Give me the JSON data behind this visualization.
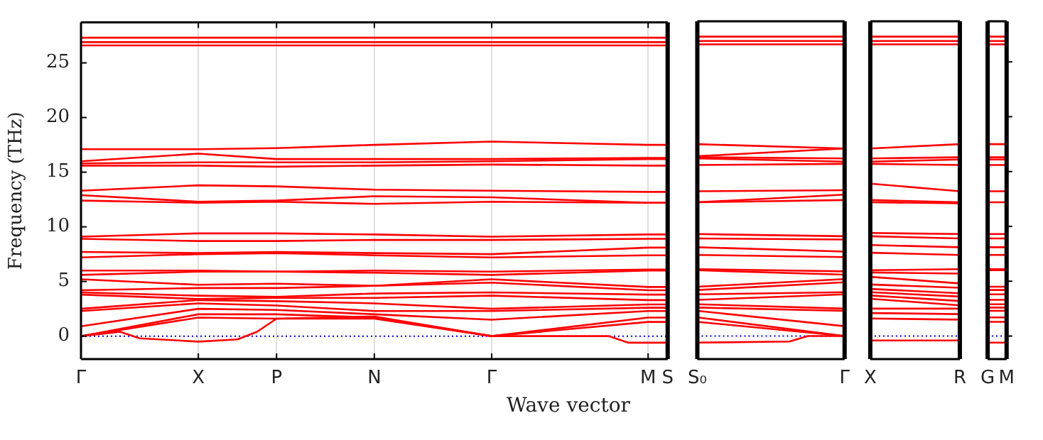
{
  "chart_data": [
    {
      "type": "line",
      "ylabel": "Frequency (THz)",
      "xlabel": "Wave vector",
      "categories": [
        "Γ",
        null,
        null,
        null,
        null,
        null,
        "X",
        null,
        null,
        null,
        "P",
        null,
        null,
        null,
        null,
        "N",
        null,
        null,
        null,
        null,
        null,
        "Γ",
        null,
        null,
        null,
        null,
        null,
        null,
        null,
        "M",
        "S"
      ],
      "ylim": [
        -2.1,
        28.7
      ],
      "yticks": [
        0,
        5,
        10,
        15,
        20,
        25
      ],
      "grid": "x",
      "ref_lines": [
        {
          "axis": "y",
          "value": 0,
          "color": "#0000ff",
          "line_style": "dotted"
        }
      ],
      "series": [
        {
          "color": "#ff0000",
          "values": [
            27.3,
            null,
            null,
            null,
            null,
            null,
            27.3,
            null,
            null,
            null,
            27.3,
            null,
            null,
            null,
            null,
            27.3,
            null,
            null,
            null,
            null,
            null,
            27.3,
            null,
            null,
            null,
            null,
            null,
            null,
            null,
            27.3,
            27.3
          ]
        },
        {
          "color": "#ff0000",
          "values": [
            26.9,
            null,
            null,
            null,
            null,
            null,
            26.9,
            null,
            null,
            null,
            26.9,
            null,
            null,
            null,
            null,
            26.9,
            null,
            null,
            null,
            null,
            null,
            26.9,
            null,
            null,
            null,
            null,
            null,
            null,
            null,
            26.9,
            26.9
          ]
        },
        {
          "color": "#ff0000",
          "values": [
            26.6,
            null,
            null,
            null,
            null,
            null,
            26.6,
            null,
            null,
            null,
            26.6,
            null,
            null,
            null,
            null,
            26.6,
            null,
            null,
            null,
            null,
            null,
            26.6,
            null,
            null,
            null,
            null,
            null,
            null,
            null,
            26.6,
            26.6
          ]
        },
        {
          "color": "#ff0000",
          "values": [
            17.1,
            null,
            null,
            null,
            null,
            null,
            17.1,
            null,
            null,
            null,
            17.2,
            null,
            null,
            null,
            null,
            17.5,
            null,
            null,
            null,
            null,
            null,
            17.8,
            null,
            null,
            null,
            null,
            null,
            null,
            null,
            17.5,
            17.5
          ]
        },
        {
          "color": "#ff0000",
          "values": [
            16.0,
            null,
            null,
            null,
            null,
            null,
            16.7,
            null,
            null,
            null,
            16.2,
            null,
            null,
            null,
            null,
            16.2,
            null,
            null,
            null,
            null,
            null,
            16.2,
            null,
            null,
            null,
            null,
            null,
            null,
            null,
            16.3,
            16.3
          ]
        },
        {
          "color": "#ff0000",
          "values": [
            15.8,
            null,
            null,
            null,
            null,
            null,
            15.9,
            null,
            null,
            null,
            15.9,
            null,
            null,
            null,
            null,
            15.9,
            null,
            null,
            null,
            null,
            null,
            16.0,
            null,
            null,
            null,
            null,
            null,
            null,
            null,
            16.2,
            16.2
          ]
        },
        {
          "color": "#ff0000",
          "values": [
            15.6,
            null,
            null,
            null,
            null,
            null,
            15.6,
            null,
            null,
            null,
            15.5,
            null,
            null,
            null,
            null,
            15.6,
            null,
            null,
            null,
            null,
            null,
            15.7,
            null,
            null,
            null,
            null,
            null,
            null,
            null,
            15.6,
            15.6
          ]
        },
        {
          "color": "#ff0000",
          "values": [
            13.3,
            null,
            null,
            null,
            null,
            null,
            13.8,
            null,
            null,
            null,
            13.7,
            null,
            null,
            null,
            null,
            13.4,
            null,
            null,
            null,
            null,
            null,
            13.3,
            null,
            null,
            null,
            null,
            null,
            null,
            null,
            13.2,
            13.2
          ]
        },
        {
          "color": "#ff0000",
          "values": [
            12.9,
            null,
            null,
            null,
            null,
            null,
            12.3,
            null,
            null,
            null,
            12.4,
            null,
            null,
            null,
            null,
            12.8,
            null,
            null,
            null,
            null,
            null,
            12.7,
            null,
            null,
            null,
            null,
            null,
            null,
            null,
            12.2,
            12.2
          ]
        },
        {
          "color": "#ff0000",
          "values": [
            12.4,
            null,
            null,
            null,
            null,
            null,
            12.2,
            null,
            null,
            null,
            12.3,
            null,
            null,
            null,
            null,
            12.1,
            null,
            null,
            null,
            null,
            null,
            12.3,
            null,
            null,
            null,
            null,
            null,
            null,
            null,
            12.2,
            12.2
          ]
        },
        {
          "color": "#ff0000",
          "values": [
            9.1,
            null,
            null,
            null,
            null,
            null,
            9.4,
            null,
            null,
            null,
            9.4,
            null,
            null,
            null,
            null,
            9.3,
            null,
            null,
            null,
            null,
            null,
            9.1,
            null,
            null,
            null,
            null,
            null,
            null,
            null,
            9.3,
            9.3
          ]
        },
        {
          "color": "#ff0000",
          "values": [
            8.9,
            null,
            null,
            null,
            null,
            null,
            8.7,
            null,
            null,
            null,
            8.7,
            null,
            null,
            null,
            null,
            8.8,
            null,
            null,
            null,
            null,
            null,
            8.8,
            null,
            null,
            null,
            null,
            null,
            null,
            null,
            8.9,
            8.9
          ]
        },
        {
          "color": "#ff0000",
          "values": [
            7.7,
            null,
            null,
            null,
            null,
            null,
            7.6,
            null,
            null,
            null,
            7.7,
            null,
            null,
            null,
            null,
            7.6,
            null,
            null,
            null,
            null,
            null,
            7.5,
            null,
            null,
            null,
            null,
            null,
            null,
            null,
            8.1,
            8.1
          ]
        },
        {
          "color": "#ff0000",
          "values": [
            7.2,
            null,
            null,
            null,
            null,
            null,
            7.5,
            null,
            null,
            null,
            7.6,
            null,
            null,
            null,
            null,
            7.4,
            null,
            null,
            null,
            null,
            null,
            7.2,
            null,
            null,
            null,
            null,
            null,
            null,
            null,
            7.4,
            7.4
          ]
        },
        {
          "color": "#ff0000",
          "values": [
            6.0,
            null,
            null,
            null,
            null,
            null,
            6.0,
            null,
            null,
            null,
            5.9,
            null,
            null,
            null,
            null,
            6.0,
            null,
            null,
            null,
            null,
            null,
            5.9,
            null,
            null,
            null,
            null,
            null,
            null,
            null,
            6.1,
            6.1
          ]
        },
        {
          "color": "#ff0000",
          "values": [
            5.6,
            null,
            null,
            null,
            null,
            null,
            5.9,
            null,
            null,
            null,
            5.9,
            null,
            null,
            null,
            null,
            5.8,
            null,
            null,
            null,
            null,
            null,
            5.6,
            null,
            null,
            null,
            null,
            null,
            null,
            null,
            6.0,
            6.0
          ]
        },
        {
          "color": "#ff0000",
          "values": [
            5.2,
            null,
            null,
            null,
            null,
            null,
            4.7,
            null,
            null,
            null,
            4.8,
            null,
            null,
            null,
            null,
            4.6,
            null,
            null,
            null,
            null,
            null,
            5.2,
            null,
            null,
            null,
            null,
            null,
            null,
            null,
            4.5,
            4.5
          ]
        },
        {
          "color": "#ff0000",
          "values": [
            4.2,
            null,
            null,
            null,
            null,
            null,
            4.4,
            null,
            null,
            null,
            4.4,
            null,
            null,
            null,
            null,
            4.6,
            null,
            null,
            null,
            null,
            null,
            4.9,
            null,
            null,
            null,
            null,
            null,
            null,
            null,
            4.2,
            4.2
          ]
        },
        {
          "color": "#ff0000",
          "values": [
            4.0,
            null,
            null,
            null,
            null,
            null,
            3.7,
            null,
            null,
            null,
            3.6,
            null,
            null,
            null,
            null,
            3.9,
            null,
            null,
            null,
            null,
            null,
            4.0,
            null,
            null,
            null,
            null,
            null,
            null,
            null,
            3.8,
            3.8
          ]
        },
        {
          "color": "#ff0000",
          "values": [
            3.8,
            null,
            null,
            null,
            null,
            null,
            3.4,
            null,
            null,
            null,
            3.5,
            null,
            null,
            null,
            null,
            3.5,
            null,
            null,
            null,
            null,
            null,
            3.7,
            null,
            null,
            null,
            null,
            null,
            null,
            null,
            3.3,
            3.3
          ]
        },
        {
          "color": "#ff0000",
          "values": [
            2.5,
            null,
            null,
            null,
            null,
            null,
            3.3,
            null,
            null,
            null,
            3.2,
            null,
            null,
            null,
            null,
            3.0,
            null,
            null,
            null,
            null,
            null,
            2.5,
            null,
            null,
            null,
            null,
            null,
            null,
            null,
            2.9,
            2.9
          ]
        },
        {
          "color": "#ff0000",
          "values": [
            2.3,
            null,
            null,
            null,
            null,
            null,
            3.0,
            null,
            null,
            null,
            2.8,
            null,
            null,
            null,
            null,
            2.3,
            null,
            null,
            null,
            null,
            null,
            2.3,
            null,
            null,
            null,
            null,
            null,
            null,
            null,
            2.6,
            2.6
          ]
        },
        {
          "color": "#ff0000",
          "values": [
            0.9,
            null,
            null,
            null,
            null,
            null,
            2.5,
            null,
            null,
            null,
            2.4,
            null,
            null,
            null,
            null,
            2.0,
            null,
            null,
            null,
            null,
            null,
            1.5,
            null,
            null,
            null,
            null,
            null,
            null,
            null,
            2.3,
            2.3
          ]
        },
        {
          "color": "#ff0000",
          "values": [
            0,
            null,
            null,
            null,
            null,
            null,
            2.0,
            null,
            null,
            null,
            2.0,
            null,
            null,
            null,
            null,
            1.7,
            null,
            null,
            null,
            null,
            null,
            0,
            null,
            null,
            null,
            null,
            null,
            null,
            null,
            1.7,
            1.7
          ]
        },
        {
          "color": "#ff0000",
          "values": [
            0,
            null,
            null,
            null,
            null,
            null,
            1.7,
            null,
            null,
            null,
            1.6,
            null,
            null,
            null,
            null,
            1.6,
            null,
            null,
            null,
            null,
            null,
            0,
            null,
            null,
            null,
            null,
            null,
            null,
            null,
            1.3,
            1.3
          ]
        },
        {
          "color": "#ff0000",
          "values": [
            0,
            null,
            0.4,
            -0.2,
            null,
            null,
            -0.5,
            null,
            -0.3,
            0.4,
            1.6,
            null,
            null,
            null,
            null,
            1.8,
            null,
            null,
            null,
            null,
            null,
            0,
            null,
            null,
            null,
            null,
            null,
            0,
            -0.6,
            -0.6,
            -0.6
          ]
        }
      ]
    },
    {
      "type": "line",
      "categories": [
        "S₀",
        null,
        null,
        null,
        null,
        null,
        null,
        null,
        "Γ"
      ],
      "ylim": [
        -2.1,
        28.7
      ],
      "yticks": [
        0,
        5,
        10,
        15,
        20,
        25
      ],
      "tick_labels": "x",
      "ref_lines": [
        {
          "axis": "y",
          "value": 0,
          "color": "#0000ff",
          "line_style": "dotted"
        }
      ],
      "series": [
        {
          "color": "#ff0000",
          "values": [
            27.3,
            null,
            null,
            null,
            null,
            null,
            null,
            null,
            27.3
          ]
        },
        {
          "color": "#ff0000",
          "values": [
            26.9,
            null,
            null,
            null,
            null,
            null,
            null,
            null,
            26.9
          ]
        },
        {
          "color": "#ff0000",
          "values": [
            26.6,
            null,
            null,
            null,
            null,
            null,
            null,
            null,
            26.6
          ]
        },
        {
          "color": "#ff0000",
          "values": [
            17.5,
            null,
            null,
            null,
            null,
            null,
            null,
            null,
            17.1
          ]
        },
        {
          "color": "#ff0000",
          "values": [
            16.4,
            null,
            null,
            null,
            null,
            null,
            null,
            null,
            17.1
          ]
        },
        {
          "color": "#ff0000",
          "values": [
            16.3,
            null,
            null,
            null,
            null,
            null,
            null,
            null,
            16.2
          ]
        },
        {
          "color": "#ff0000",
          "values": [
            16.2,
            null,
            null,
            null,
            null,
            null,
            null,
            null,
            15.9
          ]
        },
        {
          "color": "#ff0000",
          "values": [
            15.6,
            null,
            null,
            null,
            null,
            null,
            null,
            null,
            15.7
          ]
        },
        {
          "color": "#ff0000",
          "values": [
            13.2,
            null,
            null,
            null,
            null,
            null,
            null,
            null,
            13.3
          ]
        },
        {
          "color": "#ff0000",
          "values": [
            12.2,
            null,
            null,
            null,
            null,
            null,
            null,
            null,
            12.9
          ]
        },
        {
          "color": "#ff0000",
          "values": [
            12.2,
            null,
            null,
            null,
            null,
            null,
            null,
            null,
            12.4
          ]
        },
        {
          "color": "#ff0000",
          "values": [
            9.3,
            null,
            null,
            null,
            null,
            null,
            null,
            null,
            9.1
          ]
        },
        {
          "color": "#ff0000",
          "values": [
            8.9,
            null,
            null,
            null,
            null,
            null,
            null,
            null,
            8.8
          ]
        },
        {
          "color": "#ff0000",
          "values": [
            8.1,
            null,
            null,
            null,
            null,
            null,
            null,
            null,
            7.7
          ]
        },
        {
          "color": "#ff0000",
          "values": [
            7.4,
            null,
            null,
            null,
            null,
            null,
            null,
            null,
            7.2
          ]
        },
        {
          "color": "#ff0000",
          "values": [
            6.1,
            null,
            null,
            null,
            null,
            null,
            null,
            null,
            5.9
          ]
        },
        {
          "color": "#ff0000",
          "values": [
            6.0,
            null,
            null,
            null,
            null,
            null,
            null,
            null,
            5.6
          ]
        },
        {
          "color": "#ff0000",
          "values": [
            4.5,
            null,
            null,
            null,
            null,
            null,
            null,
            null,
            5.2
          ]
        },
        {
          "color": "#ff0000",
          "values": [
            4.2,
            null,
            null,
            null,
            null,
            null,
            null,
            null,
            4.9
          ]
        },
        {
          "color": "#ff0000",
          "values": [
            3.8,
            null,
            null,
            null,
            null,
            null,
            null,
            null,
            4.0
          ]
        },
        {
          "color": "#ff0000",
          "values": [
            3.3,
            null,
            null,
            null,
            null,
            null,
            null,
            null,
            3.8
          ]
        },
        {
          "color": "#ff0000",
          "values": [
            2.9,
            null,
            null,
            null,
            null,
            null,
            null,
            null,
            2.5
          ]
        },
        {
          "color": "#ff0000",
          "values": [
            2.6,
            null,
            null,
            null,
            null,
            null,
            null,
            null,
            2.3
          ]
        },
        {
          "color": "#ff0000",
          "values": [
            2.3,
            null,
            null,
            null,
            null,
            null,
            null,
            null,
            0.9
          ]
        },
        {
          "color": "#ff0000",
          "values": [
            1.7,
            null,
            null,
            null,
            null,
            null,
            null,
            null,
            0
          ]
        },
        {
          "color": "#ff0000",
          "values": [
            1.3,
            null,
            null,
            null,
            null,
            null,
            null,
            null,
            0
          ]
        },
        {
          "color": "#ff0000",
          "values": [
            -0.6,
            null,
            null,
            null,
            null,
            -0.5,
            0,
            null,
            0
          ]
        }
      ]
    },
    {
      "type": "line",
      "categories": [
        "X",
        null,
        null,
        null,
        null,
        "R"
      ],
      "ylim": [
        -2.1,
        28.7
      ],
      "yticks": [
        0,
        5,
        10,
        15,
        20,
        25
      ],
      "tick_labels": "x",
      "ref_lines": [
        {
          "axis": "y",
          "value": 0,
          "color": "#0000ff",
          "line_style": "dotted"
        }
      ],
      "series": [
        {
          "color": "#ff0000",
          "values": [
            27.3,
            null,
            null,
            null,
            null,
            27.3
          ]
        },
        {
          "color": "#ff0000",
          "values": [
            26.9,
            null,
            null,
            null,
            null,
            26.9
          ]
        },
        {
          "color": "#ff0000",
          "values": [
            26.6,
            null,
            null,
            null,
            null,
            26.6
          ]
        },
        {
          "color": "#ff0000",
          "values": [
            17.1,
            null,
            null,
            null,
            null,
            17.5
          ]
        },
        {
          "color": "#ff0000",
          "values": [
            16.2,
            null,
            null,
            null,
            null,
            16.3
          ]
        },
        {
          "color": "#ff0000",
          "values": [
            15.9,
            null,
            null,
            null,
            null,
            16.1
          ]
        },
        {
          "color": "#ff0000",
          "values": [
            15.7,
            null,
            null,
            null,
            null,
            15.6
          ]
        },
        {
          "color": "#ff0000",
          "values": [
            13.9,
            null,
            null,
            null,
            null,
            13.2
          ]
        },
        {
          "color": "#ff0000",
          "values": [
            12.4,
            null,
            null,
            null,
            null,
            12.2
          ]
        },
        {
          "color": "#ff0000",
          "values": [
            12.2,
            null,
            null,
            null,
            null,
            12.1
          ]
        },
        {
          "color": "#ff0000",
          "values": [
            9.4,
            null,
            null,
            null,
            null,
            9.3
          ]
        },
        {
          "color": "#ff0000",
          "values": [
            9.1,
            null,
            null,
            null,
            null,
            8.9
          ]
        },
        {
          "color": "#ff0000",
          "values": [
            8.3,
            null,
            null,
            null,
            null,
            8.1
          ]
        },
        {
          "color": "#ff0000",
          "values": [
            7.6,
            null,
            null,
            null,
            null,
            7.4
          ]
        },
        {
          "color": "#ff0000",
          "values": [
            6.0,
            null,
            null,
            null,
            null,
            6.1
          ]
        },
        {
          "color": "#ff0000",
          "values": [
            5.8,
            null,
            null,
            null,
            null,
            5.7
          ]
        },
        {
          "color": "#ff0000",
          "values": [
            5.4,
            null,
            null,
            null,
            null,
            4.8
          ]
        },
        {
          "color": "#ff0000",
          "values": [
            4.7,
            null,
            null,
            null,
            null,
            4.4
          ]
        },
        {
          "color": "#ff0000",
          "values": [
            4.3,
            null,
            null,
            null,
            null,
            3.9
          ]
        },
        {
          "color": "#ff0000",
          "values": [
            4.0,
            null,
            null,
            null,
            null,
            3.6
          ]
        },
        {
          "color": "#ff0000",
          "values": [
            3.7,
            null,
            null,
            null,
            null,
            3.2
          ]
        },
        {
          "color": "#ff0000",
          "values": [
            3.4,
            null,
            null,
            null,
            null,
            2.8
          ]
        },
        {
          "color": "#ff0000",
          "values": [
            2.5,
            null,
            null,
            null,
            null,
            2.5
          ]
        },
        {
          "color": "#ff0000",
          "values": [
            2.1,
            null,
            null,
            null,
            null,
            2.0
          ]
        },
        {
          "color": "#ff0000",
          "values": [
            1.6,
            null,
            null,
            null,
            null,
            1.5
          ]
        },
        {
          "color": "#ff0000",
          "values": [
            -0.4,
            null,
            null,
            null,
            null,
            -0.4
          ]
        }
      ]
    },
    {
      "type": "line",
      "categories": [
        "G",
        "M"
      ],
      "ylim": [
        -2.1,
        28.7
      ],
      "yticks": [
        0,
        5,
        10,
        15,
        20,
        25
      ],
      "tick_labels": "x",
      "ref_lines": [
        {
          "axis": "y",
          "value": 0,
          "color": "#0000ff",
          "line_style": "dotted"
        }
      ],
      "series": [
        {
          "color": "#ff0000",
          "values": [
            27.3,
            27.3
          ]
        },
        {
          "color": "#ff0000",
          "values": [
            26.9,
            26.9
          ]
        },
        {
          "color": "#ff0000",
          "values": [
            26.6,
            26.6
          ]
        },
        {
          "color": "#ff0000",
          "values": [
            17.5,
            17.5
          ]
        },
        {
          "color": "#ff0000",
          "values": [
            16.3,
            16.3
          ]
        },
        {
          "color": "#ff0000",
          "values": [
            16.1,
            16.1
          ]
        },
        {
          "color": "#ff0000",
          "values": [
            15.6,
            15.6
          ]
        },
        {
          "color": "#ff0000",
          "values": [
            13.2,
            13.2
          ]
        },
        {
          "color": "#ff0000",
          "values": [
            12.2,
            12.2
          ]
        },
        {
          "color": "#ff0000",
          "values": [
            9.3,
            9.3
          ]
        },
        {
          "color": "#ff0000",
          "values": [
            8.9,
            8.9
          ]
        },
        {
          "color": "#ff0000",
          "values": [
            8.1,
            8.1
          ]
        },
        {
          "color": "#ff0000",
          "values": [
            7.4,
            7.4
          ]
        },
        {
          "color": "#ff0000",
          "values": [
            6.1,
            6.1
          ]
        },
        {
          "color": "#ff0000",
          "values": [
            6.0,
            6.0
          ]
        },
        {
          "color": "#ff0000",
          "values": [
            4.5,
            4.5
          ]
        },
        {
          "color": "#ff0000",
          "values": [
            4.2,
            4.2
          ]
        },
        {
          "color": "#ff0000",
          "values": [
            3.8,
            3.8
          ]
        },
        {
          "color": "#ff0000",
          "values": [
            3.3,
            3.3
          ]
        },
        {
          "color": "#ff0000",
          "values": [
            2.9,
            2.9
          ]
        },
        {
          "color": "#ff0000",
          "values": [
            2.6,
            2.6
          ]
        },
        {
          "color": "#ff0000",
          "values": [
            2.3,
            2.3
          ]
        },
        {
          "color": "#ff0000",
          "values": [
            1.7,
            1.7
          ]
        },
        {
          "color": "#ff0000",
          "values": [
            1.3,
            1.3
          ]
        },
        {
          "color": "#ff0000",
          "values": [
            -0.6,
            -0.6
          ]
        }
      ]
    }
  ]
}
